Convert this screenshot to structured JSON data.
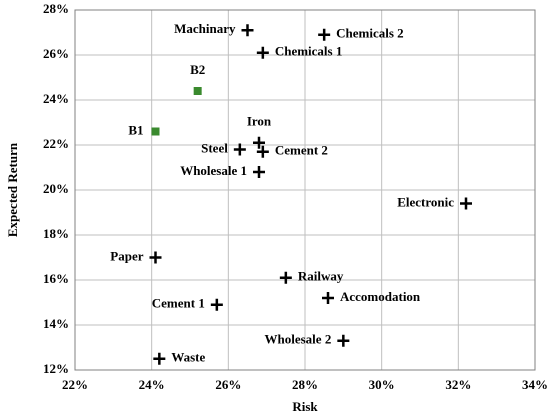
{
  "chart_data": {
    "type": "scatter",
    "x_label": "Risk",
    "y_label": "Expected Return",
    "xlim": [
      22,
      34
    ],
    "xticks": [
      {
        "value": 22,
        "label": "22%"
      },
      {
        "value": 24,
        "label": "24%"
      },
      {
        "value": 26,
        "label": "26%"
      },
      {
        "value": 28,
        "label": "28%"
      },
      {
        "value": 30,
        "label": "30%"
      },
      {
        "value": 32,
        "label": "32%"
      },
      {
        "value": 34,
        "label": "34%"
      }
    ],
    "ylim": [
      12,
      28
    ],
    "yticks": [
      {
        "value": 12,
        "label": "12%"
      },
      {
        "value": 14,
        "label": "14%"
      },
      {
        "value": 16,
        "label": "16%"
      },
      {
        "value": 18,
        "label": "18%"
      },
      {
        "value": 20,
        "label": "20%"
      },
      {
        "value": 22,
        "label": "22%"
      },
      {
        "value": 24,
        "label": "24%"
      },
      {
        "value": 26,
        "label": "26%"
      },
      {
        "value": 28,
        "label": "28%"
      }
    ],
    "grid": true,
    "series": [
      {
        "color": "#000000",
        "marker": "plus",
        "labels": [
          "Machinary",
          "Chemicals 2",
          "Chemicals 1",
          "Iron",
          "Steel",
          "Cement 2",
          "Wholesale 1",
          "Electronic",
          "Paper",
          "Railway",
          "Accomodation",
          "Cement 1",
          "Wholesale 2",
          "Waste"
        ],
        "x": [
          26.5,
          28.5,
          26.9,
          26.8,
          26.3,
          26.9,
          26.8,
          32.2,
          24.1,
          27.5,
          28.6,
          25.7,
          29.0,
          24.2
        ],
        "values": [
          27.1,
          26.9,
          26.1,
          22.1,
          21.8,
          21.7,
          20.8,
          19.4,
          17.0,
          16.1,
          15.2,
          14.9,
          13.3,
          12.5
        ]
      },
      {
        "color": "#3a8a2e",
        "marker": "square",
        "labels": [
          "B2",
          "B1"
        ],
        "x": [
          25.2,
          24.1
        ],
        "values": [
          24.4,
          22.6
        ]
      }
    ]
  }
}
